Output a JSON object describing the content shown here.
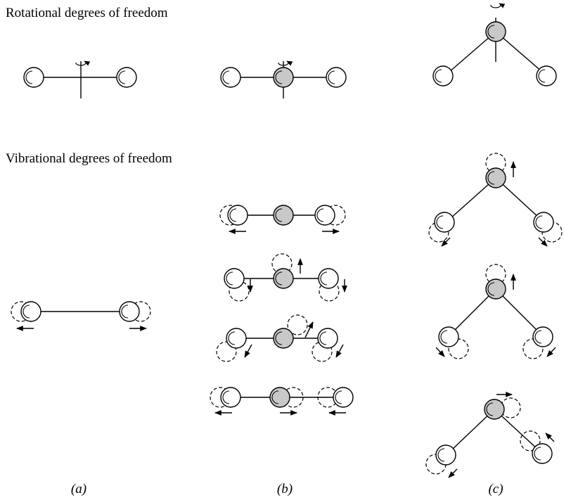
{
  "headings": {
    "rotational": "Rotational degrees of freedom",
    "vibrational": "Vibrational degrees of freedom"
  },
  "panel_labels": [
    "(a)",
    "(b)",
    "(c)"
  ],
  "colors": {
    "outer_atom_fill": "#ffffff",
    "central_atom_fill": "#c8c8c8",
    "stroke": "#000000"
  },
  "icons": {
    "rotation_axis": "rotation-arrow-icon",
    "displaced_atom": "dashed-circle",
    "motion": "arrow"
  }
}
